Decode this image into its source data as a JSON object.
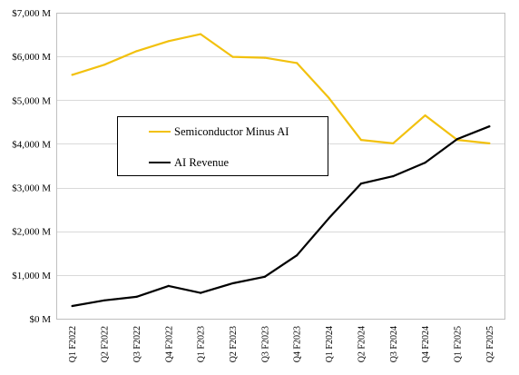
{
  "chart_data": {
    "type": "line",
    "title": "",
    "xlabel": "",
    "ylabel": "",
    "categories": [
      "Q1 F2022",
      "Q2 F2022",
      "Q3 F2022",
      "Q4 F2022",
      "Q1 F2023",
      "Q2 F2023",
      "Q3 F2023",
      "Q4 F2023",
      "Q1 F2024",
      "Q2 F2024",
      "Q3 F2024",
      "Q4 F2024",
      "Q1 F2025",
      "Q2 F2025"
    ],
    "ylim": [
      0,
      7000
    ],
    "y_ticks": [
      0,
      1000,
      2000,
      3000,
      4000,
      5000,
      6000,
      7000
    ],
    "y_tick_labels": [
      "$0 M",
      "$1,000 M",
      "$2,000 M",
      "$3,000 M",
      "$4,000 M",
      "$5,000 M",
      "$6,000 M",
      "$7,000 M"
    ],
    "grid": "horizontal",
    "legend_position": "center-left",
    "series": [
      {
        "name": "Semiconductor Minus AI",
        "color": "#F2C10E",
        "values": [
          5580,
          5810,
          6120,
          6350,
          6510,
          5990,
          5970,
          5850,
          5050,
          4090,
          4010,
          4650,
          4090,
          4010
        ]
      },
      {
        "name": "AI Revenue",
        "color": "#000000",
        "values": [
          290,
          420,
          500,
          750,
          590,
          810,
          960,
          1450,
          2300,
          3090,
          3260,
          3570,
          4110,
          4400
        ]
      }
    ]
  }
}
